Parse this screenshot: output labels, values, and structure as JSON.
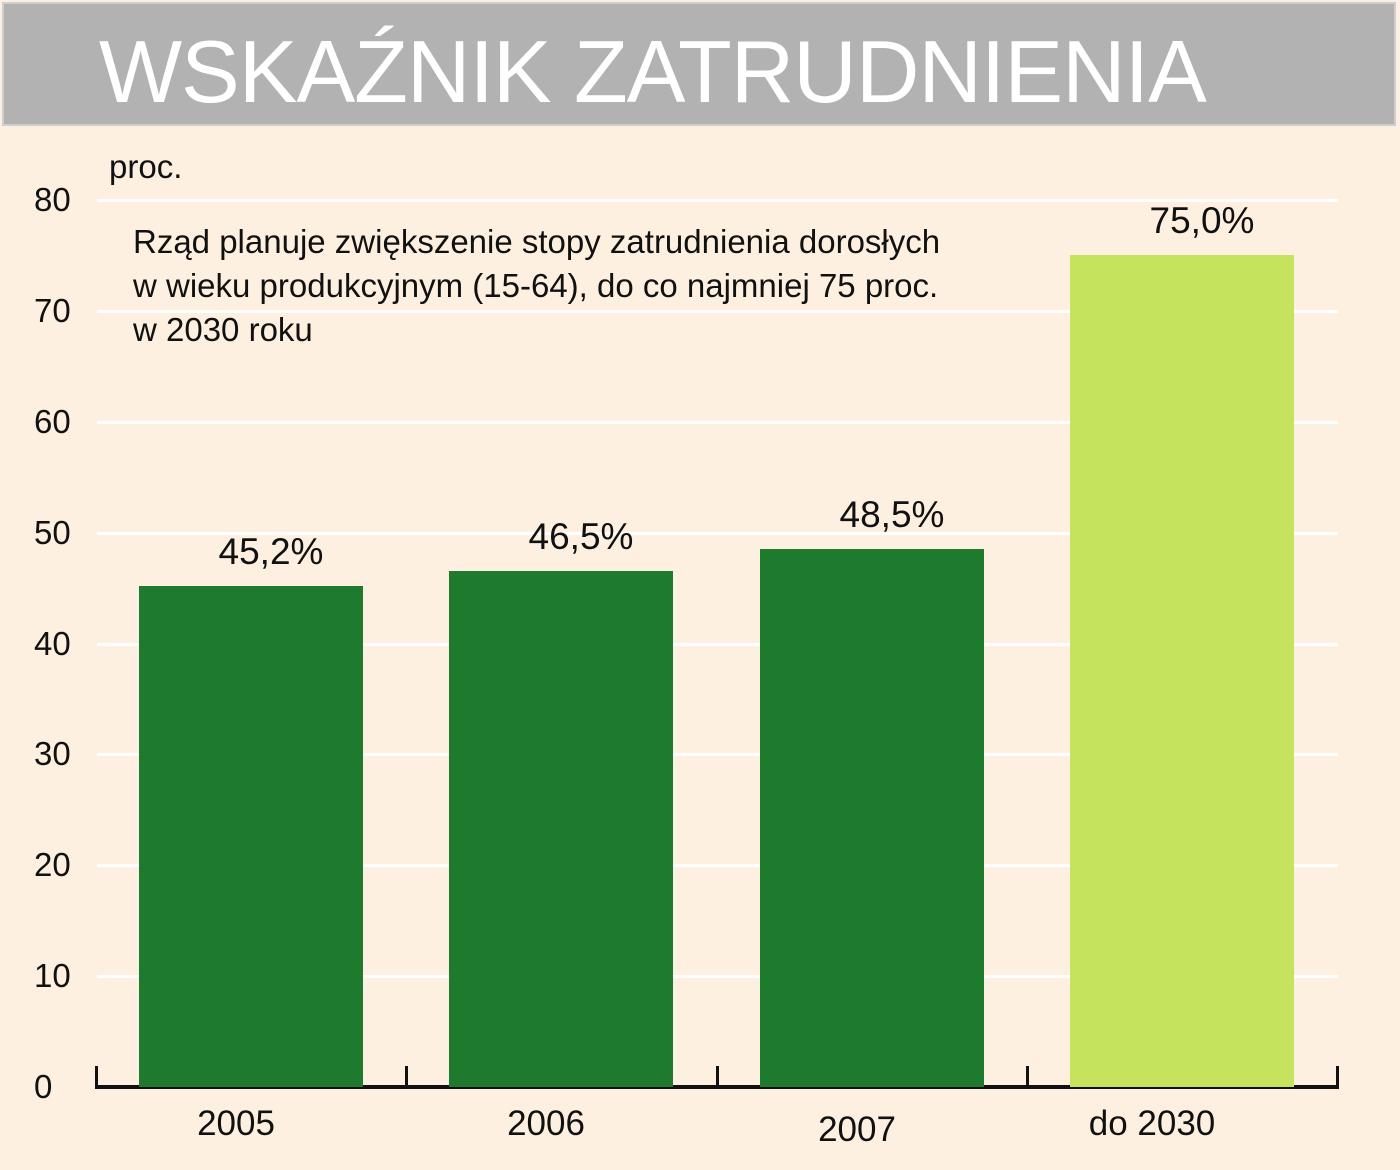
{
  "header": {
    "title": "WSKAŹNIK ZATRUDNIENIA"
  },
  "axis": {
    "unit": "proc.",
    "yticks": [
      "0",
      "10",
      "20",
      "30",
      "40",
      "50",
      "60",
      "70",
      "80"
    ]
  },
  "note": {
    "line1": "Rząd planuje zwiększenie stopy zatrudnienia dorosłych",
    "line2": "w wieku produkcyjnym (15-64), do co najmniej 75 proc.",
    "line3": "w 2030 roku"
  },
  "bars": [
    {
      "category": "2005",
      "label": "45,2%",
      "value": 45.2,
      "color": "#1e7a2d"
    },
    {
      "category": "2006",
      "label": "46,5%",
      "value": 46.5,
      "color": "#1e7a2d"
    },
    {
      "category": "2007",
      "label": "48,5%",
      "value": 48.5,
      "color": "#1e7a2d"
    },
    {
      "category": "do 2030",
      "label": "75,0%",
      "value": 75.0,
      "color": "#c5e35d"
    }
  ],
  "chart_data": {
    "type": "bar",
    "title": "WSKAŹNIK ZATRUDNIENIA",
    "categories": [
      "2005",
      "2006",
      "2007",
      "do 2030"
    ],
    "values": [
      45.2,
      46.5,
      48.5,
      75.0
    ],
    "data_labels": [
      "45,2%",
      "46,5%",
      "48,5%",
      "75,0%"
    ],
    "xlabel": "",
    "ylabel": "proc.",
    "ylim": [
      0,
      80
    ],
    "yticks": [
      0,
      10,
      20,
      30,
      40,
      50,
      60,
      70,
      80
    ],
    "grid": true,
    "annotation": "Rząd planuje zwiększenie stopy zatrudnienia dorosłych w wieku produkcyjnym (15-64), do co najmniej 75 proc. w 2030 roku",
    "colors": [
      "#1e7a2d",
      "#1e7a2d",
      "#1e7a2d",
      "#c5e35d"
    ],
    "legend": null
  }
}
